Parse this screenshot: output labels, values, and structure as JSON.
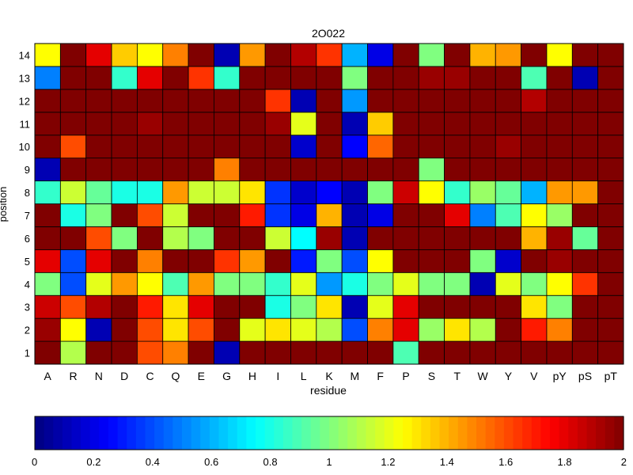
{
  "chart_data": {
    "type": "heatmap",
    "title": "2O022",
    "xlabel": "residue",
    "ylabel": "position",
    "x_categories": [
      "A",
      "R",
      "N",
      "D",
      "C",
      "Q",
      "E",
      "G",
      "H",
      "I",
      "L",
      "K",
      "M",
      "F",
      "P",
      "S",
      "T",
      "W",
      "Y",
      "V",
      "pY",
      "pS",
      "pT"
    ],
    "y_categories": [
      "1",
      "2",
      "3",
      "4",
      "5",
      "6",
      "7",
      "8",
      "9",
      "10",
      "11",
      "12",
      "13",
      "14"
    ],
    "color_scale": "jet",
    "clim": [
      0,
      2
    ],
    "colorbar_ticks": [
      0,
      0.2,
      0.4,
      0.6,
      0.8,
      1,
      1.2,
      1.4,
      1.6,
      1.8,
      2
    ],
    "colorbar_tick_labels": [
      "0",
      "0.2",
      "0.4",
      "0.6",
      "0.8",
      "1",
      "1.2",
      "1.4",
      "1.6",
      "1.8",
      "2"
    ],
    "values_by_position": {
      "1": [
        2.0,
        1.1,
        2.0,
        2.0,
        1.6,
        1.5,
        2.0,
        0.1,
        2.0,
        2.0,
        2.0,
        2.0,
        2.0,
        2.0,
        0.9,
        2.0,
        2.0,
        2.0,
        2.0,
        2.0,
        2.0,
        2.0,
        2.0
      ],
      "2": [
        1.95,
        1.25,
        0.1,
        2.0,
        1.6,
        1.3,
        1.6,
        2.0,
        1.2,
        1.3,
        1.2,
        1.1,
        0.4,
        1.5,
        1.8,
        1.05,
        1.3,
        1.1,
        2.0,
        1.7,
        1.5,
        2.0,
        2.0
      ],
      "3": [
        1.85,
        1.6,
        1.9,
        2.0,
        1.7,
        1.3,
        1.8,
        2.0,
        2.0,
        0.8,
        1.0,
        1.3,
        0.1,
        1.2,
        1.8,
        2.0,
        2.0,
        2.0,
        2.0,
        1.3,
        1.0,
        2.0,
        2.0
      ],
      "4": [
        1.0,
        0.4,
        1.2,
        1.45,
        1.25,
        0.9,
        1.45,
        1.0,
        1.0,
        0.85,
        1.2,
        0.55,
        0.8,
        1.0,
        1.2,
        1.0,
        1.0,
        0.1,
        1.2,
        1.0,
        1.25,
        1.65,
        2.0
      ],
      "5": [
        1.8,
        0.4,
        1.8,
        2.0,
        1.5,
        2.0,
        2.0,
        1.65,
        1.45,
        2.0,
        0.3,
        1.0,
        0.4,
        1.25,
        2.0,
        2.0,
        2.0,
        1.0,
        0.15,
        2.0,
        1.95,
        2.0,
        2.0
      ],
      "6": [
        2.0,
        2.0,
        1.6,
        1.0,
        2.0,
        1.1,
        1.0,
        2.0,
        2.0,
        1.15,
        0.75,
        1.95,
        0.1,
        2.0,
        2.0,
        2.0,
        2.0,
        2.0,
        2.0,
        1.4,
        1.95,
        0.95,
        2.0
      ],
      "7": [
        2.0,
        0.8,
        1.0,
        2.0,
        1.6,
        1.15,
        2.0,
        2.0,
        1.7,
        0.35,
        0.2,
        1.4,
        0.1,
        0.2,
        2.0,
        2.0,
        1.8,
        0.5,
        0.9,
        1.25,
        1.05,
        2.0,
        2.0
      ],
      "8": [
        0.85,
        1.15,
        0.95,
        0.8,
        0.8,
        1.45,
        1.15,
        1.15,
        1.3,
        0.35,
        0.15,
        0.25,
        0.1,
        1.0,
        1.85,
        1.25,
        0.85,
        1.05,
        0.95,
        0.6,
        1.45,
        1.45,
        2.0
      ],
      "9": [
        0.1,
        2.0,
        2.0,
        2.0,
        2.0,
        2.0,
        2.0,
        1.5,
        2.0,
        2.0,
        2.0,
        2.0,
        2.0,
        2.0,
        2.0,
        1.0,
        2.0,
        2.0,
        2.0,
        2.0,
        2.0,
        2.0,
        2.0
      ],
      "10": [
        2.0,
        1.6,
        2.0,
        2.0,
        2.0,
        2.0,
        2.0,
        2.0,
        2.0,
        2.0,
        0.15,
        2.0,
        0.25,
        1.55,
        2.0,
        2.0,
        2.0,
        2.0,
        1.95,
        2.0,
        2.0,
        2.0,
        2.0
      ],
      "11": [
        2.0,
        2.0,
        2.0,
        2.0,
        1.95,
        2.0,
        2.0,
        2.0,
        2.0,
        1.95,
        1.2,
        2.0,
        0.1,
        1.35,
        2.0,
        2.0,
        2.0,
        2.0,
        2.0,
        2.0,
        2.0,
        2.0,
        2.0
      ],
      "12": [
        2.0,
        2.0,
        2.0,
        2.0,
        2.0,
        2.0,
        2.0,
        2.0,
        2.0,
        1.65,
        0.1,
        2.0,
        0.55,
        2.0,
        2.0,
        2.0,
        2.0,
        2.0,
        2.0,
        1.9,
        2.0,
        2.0,
        2.0
      ],
      "13": [
        0.5,
        2.0,
        2.0,
        0.85,
        1.8,
        2.0,
        1.65,
        0.85,
        2.0,
        2.0,
        2.0,
        2.0,
        1.0,
        2.0,
        2.0,
        1.95,
        1.95,
        2.0,
        2.0,
        0.9,
        2.0,
        0.1,
        2.0
      ],
      "14": [
        1.25,
        2.0,
        1.8,
        1.35,
        1.25,
        1.5,
        2.0,
        0.1,
        1.45,
        2.0,
        1.9,
        1.65,
        0.6,
        0.2,
        2.0,
        1.0,
        2.0,
        1.4,
        1.45,
        2.0,
        1.25,
        2.0,
        2.0
      ]
    }
  }
}
